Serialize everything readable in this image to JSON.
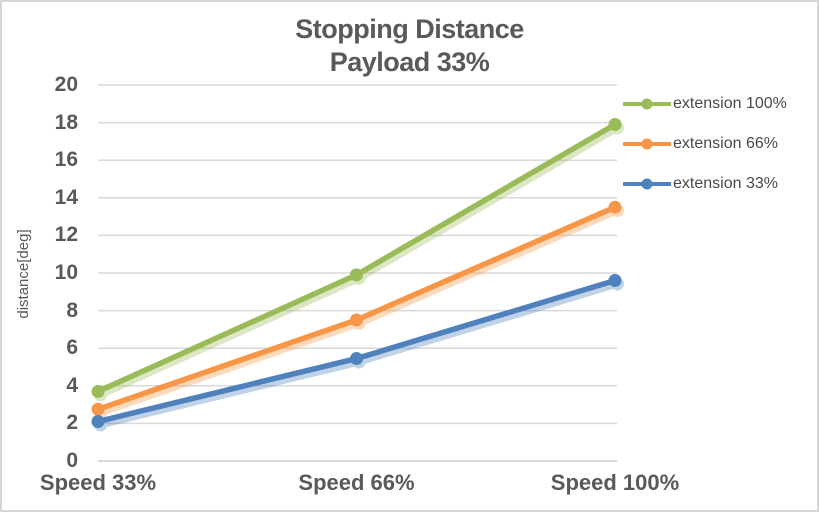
{
  "window": {
    "background": "#ffffff",
    "border_color": "#d6d6d6"
  },
  "title": {
    "line1": "Stopping Distance",
    "line2": "Payload 33%"
  },
  "colors": {
    "title_text": "#595959",
    "axis_text": "#595959",
    "gridline": "#d9d9d9",
    "series_green": "#9bbb59",
    "series_orange": "#f79646",
    "series_blue": "#4f81bd"
  },
  "chart_data": {
    "type": "line",
    "title": "Stopping Distance Payload 33%",
    "categories": [
      "Speed 33%",
      "Speed 66%",
      "Speed 100%"
    ],
    "series": [
      {
        "name": "extension 100%",
        "color": "#9bbb59",
        "values": [
          3.7,
          9.9,
          17.9
        ]
      },
      {
        "name": "extension 66%",
        "color": "#f79646",
        "values": [
          2.75,
          7.5,
          13.5
        ]
      },
      {
        "name": "extension 33%",
        "color": "#4f81bd",
        "values": [
          2.1,
          5.45,
          9.6
        ]
      }
    ],
    "xlabel": "",
    "ylabel": "distance[deg]",
    "ylim": [
      0,
      20
    ],
    "ytick_step": 2,
    "grid": true,
    "legend_position": "right",
    "marker": "circle",
    "line_shadow": true
  }
}
